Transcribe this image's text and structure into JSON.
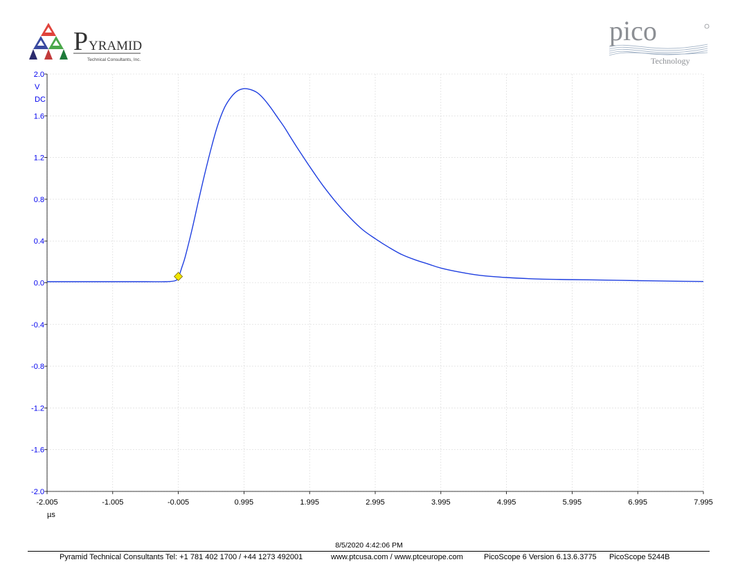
{
  "brand_left": {
    "initial": "P",
    "name": "YRAMID",
    "tagline": "Technical Consultants, Inc."
  },
  "brand_right": {
    "name": "pico",
    "sub": "Technology"
  },
  "colors": {
    "axis_text": "#0000ee",
    "trace": "#1f3fe0",
    "trigger": "#f2e600",
    "grid": "#d6d6d6"
  },
  "chart_data": {
    "type": "line",
    "title": "",
    "ylabel_lines": [
      "V",
      "DC"
    ],
    "xlabel": "µs",
    "ylim": [
      -2.0,
      2.0
    ],
    "xlim": [
      -2.005,
      7.995
    ],
    "y_ticks": [
      "2.0",
      "1.6",
      "1.2",
      "0.8",
      "0.4",
      "0.0",
      "-0.4",
      "-0.8",
      "-1.2",
      "-1.6",
      "-2.0"
    ],
    "y_tick_values": [
      2.0,
      1.6,
      1.2,
      0.8,
      0.4,
      0.0,
      -0.4,
      -0.8,
      -1.2,
      -1.6,
      -2.0
    ],
    "x_ticks": [
      "-2.005",
      "-1.005",
      "-0.005",
      "0.995",
      "1.995",
      "2.995",
      "3.995",
      "4.995",
      "5.995",
      "6.995",
      "7.995"
    ],
    "x_tick_values": [
      -2.005,
      -1.005,
      -0.005,
      0.995,
      1.995,
      2.995,
      3.995,
      4.995,
      5.995,
      6.995,
      7.995
    ],
    "grid": true,
    "trigger_marker": {
      "x": -0.005,
      "y": 0.06
    },
    "series": [
      {
        "x": [
          -2.005,
          -1.5,
          -1.0,
          -0.5,
          -0.2,
          -0.05,
          0.0,
          0.05,
          0.1,
          0.2,
          0.3,
          0.4,
          0.5,
          0.6,
          0.7,
          0.8,
          0.9,
          1.0,
          1.1,
          1.2,
          1.3,
          1.4,
          1.5,
          1.6,
          1.7,
          1.8,
          2.0,
          2.2,
          2.4,
          2.6,
          2.8,
          3.0,
          3.2,
          3.4,
          3.6,
          3.8,
          4.0,
          4.3,
          4.6,
          5.0,
          5.5,
          6.0,
          6.5,
          7.0,
          7.5,
          7.995
        ],
        "y": [
          0.01,
          0.01,
          0.01,
          0.01,
          0.01,
          0.02,
          0.06,
          0.15,
          0.25,
          0.5,
          0.78,
          1.05,
          1.3,
          1.52,
          1.68,
          1.78,
          1.84,
          1.86,
          1.85,
          1.82,
          1.76,
          1.68,
          1.59,
          1.5,
          1.4,
          1.3,
          1.11,
          0.93,
          0.77,
          0.63,
          0.51,
          0.42,
          0.34,
          0.27,
          0.22,
          0.18,
          0.14,
          0.1,
          0.07,
          0.05,
          0.035,
          0.03,
          0.025,
          0.02,
          0.015,
          0.012
        ]
      }
    ]
  },
  "footer": {
    "date": "8/5/2020 4:42:06 PM",
    "company": "Pyramid Technical Consultants Tel: +1 781 402 1700 / +44 1273 492001",
    "web": "www.ptcusa.com / www.ptceurope.com",
    "version": "PicoScope 6 Version 6.13.6.3775",
    "model": "PicoScope 5244B"
  }
}
